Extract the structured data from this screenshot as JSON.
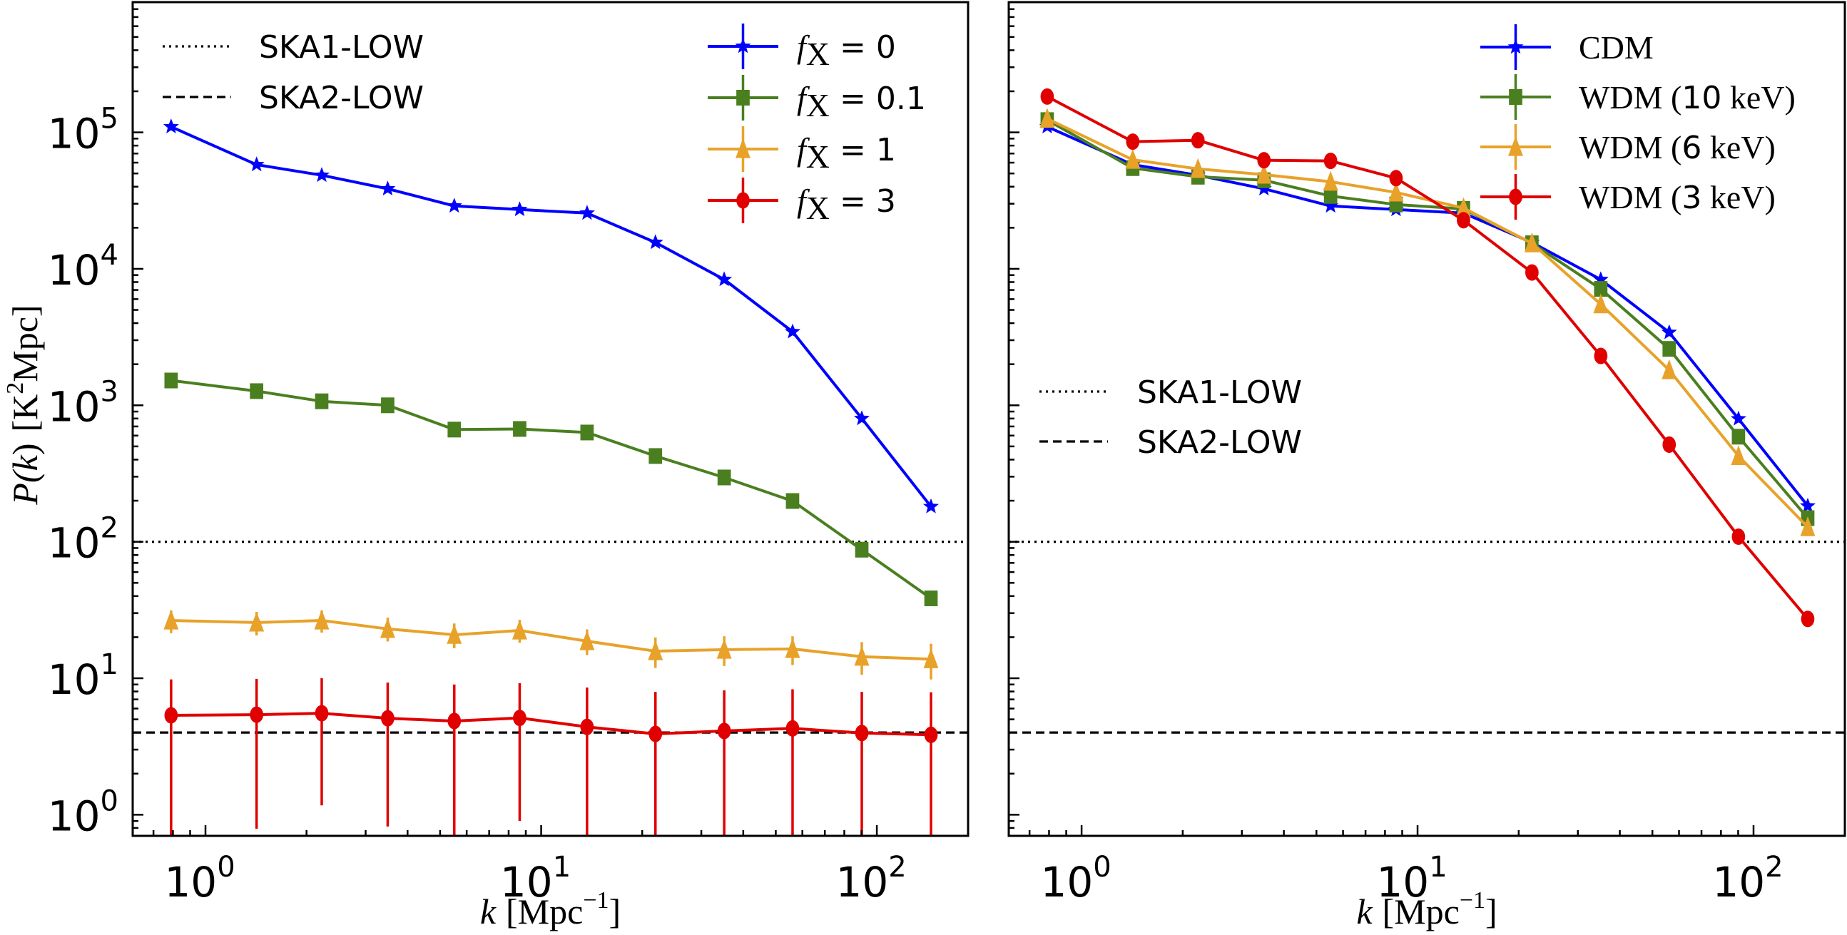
{
  "chart_data": [
    {
      "type": "line",
      "panel": "left",
      "title": "",
      "xlabel": "k [Mpc^-1]",
      "xlabel_parts": {
        "var": "k",
        "unit": "[Mpc",
        "exp": "−1",
        "close": "]"
      },
      "ylabel": "P(k) [K^2 Mpc]",
      "ylabel_parts": {
        "func": "P(",
        "var": "k",
        "close": ")",
        "unit_open": "[K",
        "exp": "2",
        "unit_close": "Mpc]"
      },
      "xscale": "log",
      "yscale": "log",
      "xlim": [
        0.607,
        187
      ],
      "ylim": [
        0.7,
        900000
      ],
      "xticks": [
        {
          "base": "10",
          "exp": "0",
          "value": 1
        },
        {
          "base": "10",
          "exp": "1",
          "value": 10
        },
        {
          "base": "10",
          "exp": "2",
          "value": 100
        }
      ],
      "yticks": [
        {
          "base": "10",
          "exp": "0",
          "value": 1
        },
        {
          "base": "10",
          "exp": "1",
          "value": 10
        },
        {
          "base": "10",
          "exp": "2",
          "value": 100
        },
        {
          "base": "10",
          "exp": "3",
          "value": 1000
        },
        {
          "base": "10",
          "exp": "4",
          "value": 10000
        },
        {
          "base": "10",
          "exp": "5",
          "value": 100000
        }
      ],
      "show_ylabels": true,
      "grid": false,
      "x": [
        0.79,
        1.42,
        2.22,
        3.49,
        5.51,
        8.63,
        13.7,
        21.9,
        35.1,
        56.1,
        90.2,
        145
      ],
      "hlines": [
        {
          "name": "SKA1-LOW",
          "value": 100,
          "style": "dotted"
        },
        {
          "name": "SKA2-LOW",
          "value": 4.0,
          "style": "dashed"
        }
      ],
      "legends": [
        {
          "placement": "top-left",
          "style": "sans",
          "entries": [
            {
              "label": "SKA1-LOW",
              "ref": "SKA1-LOW"
            },
            {
              "label": "SKA2-LOW",
              "ref": "SKA2-LOW"
            }
          ]
        },
        {
          "placement": "top-right",
          "style": "fx",
          "entries": [
            {
              "label_var": "f",
              "label_sub": "X",
              "label_rest": " = 0",
              "series": 0
            },
            {
              "label_var": "f",
              "label_sub": "X",
              "label_rest": " = 0.1",
              "series": 1
            },
            {
              "label_var": "f",
              "label_sub": "X",
              "label_rest": " = 1",
              "series": 2
            },
            {
              "label_var": "f",
              "label_sub": "X",
              "label_rest": " = 3",
              "series": 3
            }
          ]
        }
      ],
      "series": [
        {
          "name": "fX = 0",
          "color": "#0000ff",
          "marker": "star",
          "values": [
            110000,
            58000,
            48500,
            38600,
            28900,
            27200,
            25600,
            15600,
            8350,
            3460,
            800,
            181
          ]
        },
        {
          "name": "fX = 0.1",
          "color": "#4a7f1f",
          "marker": "square",
          "values": [
            1520,
            1270,
            1070,
            1000,
            664,
            671,
            632,
            425,
            296,
            199,
            87.5,
            38.5
          ]
        },
        {
          "name": "fX = 1",
          "color": "#e8a22a",
          "marker": "triangle",
          "values": [
            26.5,
            25.6,
            26.5,
            23.0,
            20.8,
            22.4,
            18.7,
            15.8,
            16.2,
            16.4,
            14.4,
            13.8
          ],
          "err_low": [
            21.4,
            20.6,
            21.6,
            18.6,
            16.6,
            18.2,
            14.8,
            11.9,
            12.3,
            12.5,
            10.6,
            9.8
          ],
          "err_high": [
            31.4,
            30.6,
            31.4,
            27.8,
            25.2,
            26.8,
            22.8,
            19.9,
            20.3,
            20.3,
            18.4,
            17.9
          ]
        },
        {
          "name": "fX = 3",
          "color": "#e00000",
          "marker": "circle",
          "values": [
            5.35,
            5.41,
            5.54,
            5.09,
            4.86,
            5.12,
            4.4,
            3.91,
            4.11,
            4.29,
            3.97,
            3.85
          ],
          "err_low": [
            0.5,
            0.79,
            1.17,
            0.82,
            0.5,
            0.9,
            0.5,
            0.5,
            0.5,
            0.5,
            0.5,
            0.5
          ],
          "err_high": [
            9.8,
            9.9,
            10.0,
            9.3,
            9.0,
            9.2,
            8.55,
            7.95,
            8.15,
            8.3,
            7.95,
            7.9
          ]
        }
      ]
    },
    {
      "type": "line",
      "panel": "right",
      "title": "",
      "xlabel": "k [Mpc^-1]",
      "xlabel_parts": {
        "var": "k",
        "unit": "[Mpc",
        "exp": "−1",
        "close": "]"
      },
      "ylabel": "",
      "xscale": "log",
      "yscale": "log",
      "xlim": [
        0.607,
        187
      ],
      "ylim": [
        0.7,
        900000
      ],
      "xticks": [
        {
          "base": "10",
          "exp": "0",
          "value": 1
        },
        {
          "base": "10",
          "exp": "1",
          "value": 10
        },
        {
          "base": "10",
          "exp": "2",
          "value": 100
        }
      ],
      "yticks": [
        {
          "value": 1
        },
        {
          "value": 10
        },
        {
          "value": 100
        },
        {
          "value": 1000
        },
        {
          "value": 10000
        },
        {
          "value": 100000
        }
      ],
      "show_ylabels": false,
      "grid": false,
      "x": [
        0.79,
        1.42,
        2.22,
        3.49,
        5.51,
        8.63,
        13.7,
        21.9,
        35.1,
        56.1,
        90.2,
        145
      ],
      "hlines": [
        {
          "name": "SKA1-LOW",
          "value": 100,
          "style": "dotted"
        },
        {
          "name": "SKA2-LOW",
          "value": 4.0,
          "style": "dashed"
        }
      ],
      "legends": [
        {
          "placement": "center-left",
          "style": "sans",
          "entries": [
            {
              "label": "SKA1-LOW",
              "ref": "SKA1-LOW"
            },
            {
              "label": "SKA2-LOW",
              "ref": "SKA2-LOW"
            }
          ]
        },
        {
          "placement": "top-right",
          "style": "serif",
          "entries": [
            {
              "label_main": "CDM",
              "label_num": "",
              "label_unit": "",
              "series": 0
            },
            {
              "label_main": "WDM (",
              "label_num": "10",
              "label_unit": " keV)",
              "series": 1
            },
            {
              "label_main": "WDM (",
              "label_num": "6",
              "label_unit": " keV)",
              "series": 2
            },
            {
              "label_main": "WDM (",
              "label_num": "3",
              "label_unit": " keV)",
              "series": 3
            }
          ]
        }
      ],
      "series": [
        {
          "name": "CDM",
          "color": "#0000ff",
          "marker": "star",
          "values": [
            110000,
            58000,
            48500,
            38600,
            28900,
            27200,
            25600,
            15600,
            8350,
            3420,
            796,
            183
          ]
        },
        {
          "name": "WDM (10 keV)",
          "color": "#4a7f1f",
          "marker": "square",
          "values": [
            123000,
            54700,
            47300,
            44600,
            34200,
            29600,
            27500,
            15400,
            7130,
            2590,
            589,
            149
          ]
        },
        {
          "name": "WDM (6 keV)",
          "color": "#e8a22a",
          "marker": "triangle",
          "values": [
            126000,
            63000,
            54000,
            49000,
            43500,
            36300,
            27900,
            15400,
            5500,
            1810,
            425,
            128
          ]
        },
        {
          "name": "WDM (3 keV)",
          "color": "#e00000",
          "marker": "circle",
          "values": [
            183000,
            85500,
            87500,
            62500,
            61800,
            46200,
            22700,
            9400,
            2300,
            515,
            109,
            27.2
          ],
          "err_low": [
            null,
            null,
            null,
            null,
            null,
            null,
            null,
            null,
            null,
            null,
            null,
            24.5
          ],
          "err_high": [
            null,
            null,
            null,
            null,
            null,
            null,
            null,
            null,
            null,
            null,
            null,
            30.0
          ]
        }
      ]
    }
  ]
}
